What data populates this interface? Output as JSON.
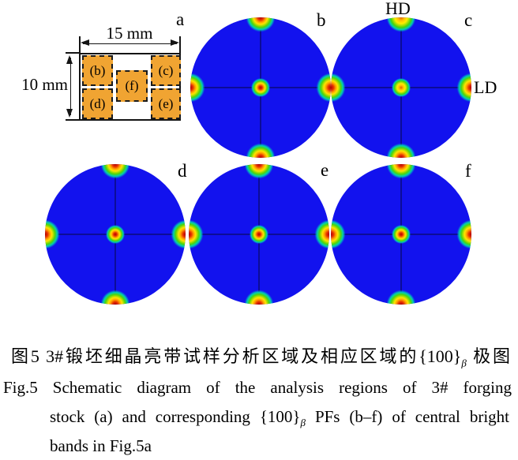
{
  "figure": {
    "panels": {
      "a": "a",
      "b": "b",
      "c": "c",
      "d": "d",
      "e": "e",
      "f": "f"
    },
    "directions": {
      "top": "HD",
      "right": "LD"
    },
    "schematic": {
      "width_label": "15 mm",
      "height_label": "10 mm",
      "regions": {
        "b": "(b)",
        "c": "(c)",
        "d": "(d)",
        "e": "(e)",
        "f": "(f)"
      }
    },
    "pole_figures": {
      "description": "{100}β pole figures (panels b–f) of central bright bands, each showing intensity maxima at the top, bottom, left and right rim positions and a weaker maximum at the center (cube-type texture)",
      "panels": [
        "b",
        "c",
        "d",
        "e",
        "f"
      ],
      "spot_positions": [
        "top",
        "bottom",
        "left",
        "right",
        "center"
      ],
      "colors": {
        "background_blue": "#1212ee",
        "spot_core_red": "#b20000",
        "spot_yellow": "#ffe400",
        "spot_green": "#4fd609",
        "region_orange": "#f0a432"
      }
    }
  },
  "caption": {
    "zh_pre": "图5 3#锻坯细晶亮带试样分析区域及相应区域的{100}",
    "zh_sub": "β",
    "zh_post": " 极图",
    "en_line1": "Fig.5 Schematic diagram of the analysis regions of 3# forging",
    "en_line2_pre": "stock (a) and corresponding {100}",
    "en_line2_sub": "β",
    "en_line2_post": " PFs (b–f) of central bright",
    "en_line3": "bands in Fig.5a"
  }
}
